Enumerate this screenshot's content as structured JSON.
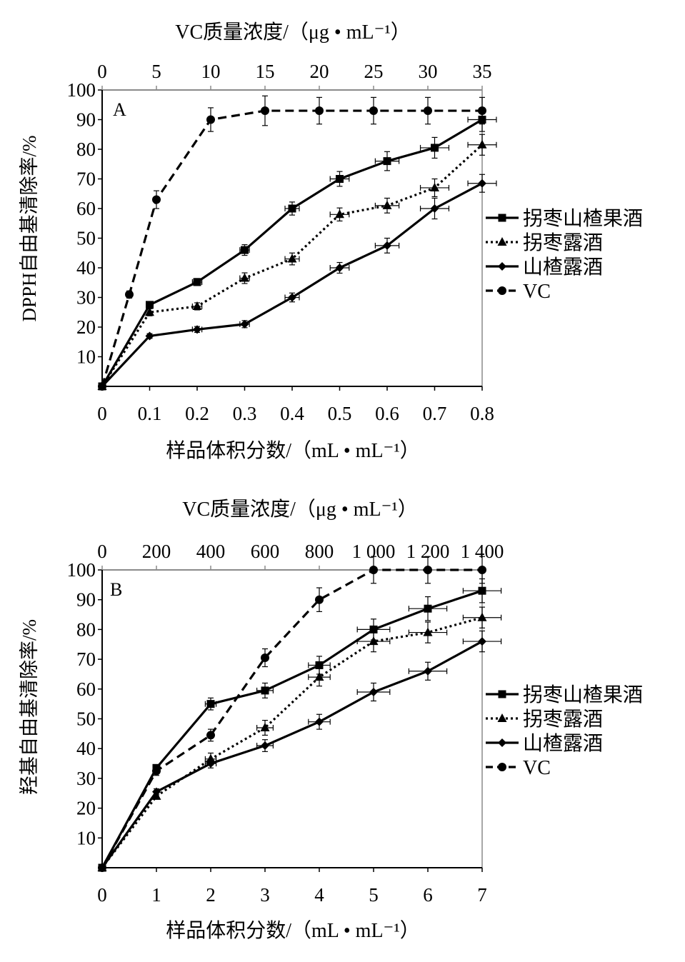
{
  "chart_data": [
    {
      "type": "line",
      "panel_label": "A",
      "top_axis_label": "VC质量浓度/（μg • mL⁻¹）",
      "bottom_axis_label": "样品体积分数/（mL • mL⁻¹）",
      "ylabel": "DPPH自由基清除率/%",
      "xlim": [
        0,
        0.8
      ],
      "x_ticks": [
        0,
        0.1,
        0.2,
        0.3,
        0.4,
        0.5,
        0.6,
        0.7,
        0.8
      ],
      "x_tick_labels": [
        "0",
        "0.1",
        "0.2",
        "0.3",
        "0.4",
        "0.5",
        "0.6",
        "0.7",
        "0.8"
      ],
      "top_xlim": [
        0,
        35
      ],
      "top_ticks": [
        0,
        5,
        10,
        15,
        20,
        25,
        30,
        35
      ],
      "top_tick_labels": [
        "0",
        "5",
        "10",
        "15",
        "20",
        "25",
        "30",
        "35"
      ],
      "ylim": [
        0,
        100
      ],
      "y_ticks": [
        10,
        20,
        30,
        40,
        50,
        60,
        70,
        80,
        90,
        100
      ],
      "y_tick_labels": [
        "10",
        "20",
        "30",
        "40",
        "50",
        "60",
        "70",
        "80",
        "90",
        "100"
      ],
      "grid": false,
      "legend_position": "right",
      "series": [
        {
          "name": "拐枣山楂果酒",
          "style": "solid",
          "marker": "square",
          "axis": "bottom",
          "x": [
            0,
            0.1,
            0.2,
            0.3,
            0.4,
            0.5,
            0.6,
            0.7,
            0.8
          ],
          "y": [
            0,
            27.5,
            35.2,
            46.0,
            60.0,
            70.0,
            76.0,
            80.5,
            90.0
          ],
          "x_err": [
            0,
            0,
            0.01,
            0.01,
            0.015,
            0.02,
            0.025,
            0.03,
            0.03
          ],
          "y_err": [
            0,
            1,
            1.2,
            1.8,
            2.2,
            2.5,
            3.2,
            3.5,
            4
          ]
        },
        {
          "name": "拐枣露酒",
          "style": "dotted",
          "marker": "triangle",
          "axis": "bottom",
          "x": [
            0,
            0.1,
            0.2,
            0.3,
            0.4,
            0.5,
            0.6,
            0.7,
            0.8
          ],
          "y": [
            0,
            25.0,
            27.0,
            36.5,
            43.0,
            58.0,
            61.0,
            67.0,
            81.5
          ],
          "x_err": [
            0,
            0,
            0.01,
            0.01,
            0.015,
            0.02,
            0.025,
            0.03,
            0.03
          ],
          "y_err": [
            0,
            1.2,
            1.2,
            1.8,
            2,
            2.2,
            2.5,
            3,
            3.5
          ]
        },
        {
          "name": "山楂露酒",
          "style": "solid",
          "marker": "diamond",
          "axis": "bottom",
          "x": [
            0,
            0.1,
            0.2,
            0.3,
            0.4,
            0.5,
            0.6,
            0.7,
            0.8
          ],
          "y": [
            0,
            17.0,
            19.2,
            21.0,
            30.0,
            40.0,
            47.5,
            60.0,
            68.5
          ],
          "x_err": [
            0,
            0,
            0.01,
            0.01,
            0.015,
            0.02,
            0.025,
            0.03,
            0.03
          ],
          "y_err": [
            0,
            0.8,
            1,
            1.2,
            1.5,
            1.8,
            2.5,
            3.5,
            3
          ]
        },
        {
          "name": "VC",
          "style": "dashed",
          "marker": "circle",
          "axis": "top",
          "x": [
            0,
            2.5,
            5,
            10,
            15,
            20,
            25,
            30,
            35
          ],
          "y": [
            0,
            31.0,
            63.0,
            90.0,
            93.0,
            93.0,
            93.0,
            93.0,
            93.0
          ],
          "x_err": [
            0,
            0,
            0,
            0,
            0,
            0,
            0,
            0,
            0
          ],
          "y_err": [
            0,
            1.2,
            3,
            4,
            5,
            4.5,
            4.5,
            4.5,
            4.5
          ]
        }
      ]
    },
    {
      "type": "line",
      "panel_label": "B",
      "top_axis_label": "VC质量浓度/（μg • mL⁻¹）",
      "bottom_axis_label": "样品体积分数/（mL • mL⁻¹）",
      "ylabel": "羟基自由基清除率/%",
      "xlim": [
        0,
        7
      ],
      "x_ticks": [
        0,
        1,
        2,
        3,
        4,
        5,
        6,
        7
      ],
      "x_tick_labels": [
        "0",
        "1",
        "2",
        "3",
        "4",
        "5",
        "6",
        "7"
      ],
      "top_xlim": [
        0,
        1400
      ],
      "top_ticks": [
        0,
        200,
        400,
        600,
        800,
        1000,
        1200,
        1400
      ],
      "top_tick_labels": [
        "0",
        "200",
        "400",
        "600",
        "800",
        "1 000",
        "1 200",
        "1 400"
      ],
      "ylim": [
        0,
        100
      ],
      "y_ticks": [
        10,
        20,
        30,
        40,
        50,
        60,
        70,
        80,
        90,
        100
      ],
      "y_tick_labels": [
        "10",
        "20",
        "30",
        "40",
        "50",
        "60",
        "70",
        "80",
        "90",
        "100"
      ],
      "grid": false,
      "legend_position": "right",
      "series": [
        {
          "name": "拐枣山楂果酒",
          "style": "solid",
          "marker": "square",
          "axis": "bottom",
          "x": [
            0,
            1,
            2,
            3,
            4,
            5,
            6,
            7
          ],
          "y": [
            0,
            33.5,
            55.0,
            59.5,
            68.0,
            80.0,
            87.0,
            93.0
          ],
          "x_err": [
            0,
            0,
            0.1,
            0.15,
            0.2,
            0.3,
            0.35,
            0.35
          ],
          "y_err": [
            0,
            1,
            2,
            2.5,
            3,
            3.5,
            4,
            4
          ]
        },
        {
          "name": "拐枣露酒",
          "style": "dotted",
          "marker": "triangle",
          "axis": "bottom",
          "x": [
            0,
            1,
            2,
            3,
            4,
            5,
            6,
            7
          ],
          "y": [
            0,
            24.0,
            36.5,
            47.0,
            64.0,
            76.0,
            79.0,
            84.0
          ],
          "x_err": [
            0,
            0,
            0.1,
            0.15,
            0.2,
            0.3,
            0.35,
            0.35
          ],
          "y_err": [
            0,
            1,
            2,
            2.5,
            3,
            3.5,
            3.5,
            3.5
          ]
        },
        {
          "name": "山楂露酒",
          "style": "solid",
          "marker": "diamond",
          "axis": "bottom",
          "x": [
            0,
            1,
            2,
            3,
            4,
            5,
            6,
            7
          ],
          "y": [
            0,
            25.5,
            35.0,
            41.0,
            49.0,
            59.0,
            66.0,
            76.0
          ],
          "x_err": [
            0,
            0,
            0.1,
            0.15,
            0.2,
            0.3,
            0.35,
            0.35
          ],
          "y_err": [
            0,
            1,
            1.5,
            2,
            2.5,
            3,
            3,
            3.5
          ]
        },
        {
          "name": "VC",
          "style": "dashed",
          "marker": "circle",
          "axis": "top",
          "x": [
            0,
            200,
            400,
            600,
            800,
            1000,
            1200,
            1400
          ],
          "y": [
            0,
            32.5,
            44.5,
            70.5,
            90.0,
            100.0,
            100.0,
            100.0
          ],
          "x_err": [
            0,
            0,
            0,
            0,
            0,
            0,
            0,
            0
          ],
          "y_err": [
            0,
            1.5,
            2,
            3,
            4,
            4.5,
            4.5,
            4.5
          ]
        }
      ]
    }
  ]
}
